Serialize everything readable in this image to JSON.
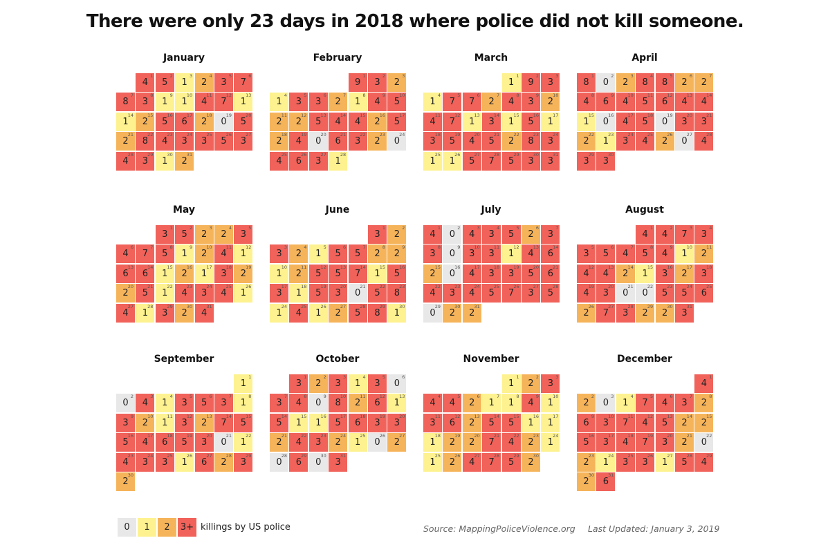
{
  "title": "There were only 23 days in 2018 where police did not kill someone.",
  "colors": {
    "0": "#e8e8e8",
    "1": "#fdf28f",
    "2": "#f6b45a",
    "3+": "#f0625a"
  },
  "legend": {
    "items": [
      {
        "label": "0",
        "key": "0"
      },
      {
        "label": "1",
        "key": "1"
      },
      {
        "label": "2",
        "key": "2"
      },
      {
        "label": "3+",
        "key": "3+"
      }
    ],
    "text": "killings by US police"
  },
  "source": "Source: MappingPoliceViolence.org",
  "updated": "Last Updated: January 3, 2019",
  "chart_data": {
    "type": "heatmap",
    "year": 2018,
    "months": [
      {
        "name": "January",
        "start_weekday": 1,
        "values": [
          4,
          5,
          1,
          2,
          3,
          7,
          8,
          3,
          1,
          1,
          4,
          7,
          1,
          1,
          2,
          5,
          6,
          2,
          0,
          5,
          2,
          8,
          4,
          3,
          3,
          5,
          3,
          4,
          3,
          1,
          2
        ]
      },
      {
        "name": "February",
        "start_weekday": 4,
        "values": [
          9,
          3,
          2,
          1,
          3,
          3,
          2,
          1,
          4,
          5,
          2,
          2,
          5,
          4,
          4,
          2,
          5,
          2,
          4,
          0,
          6,
          3,
          2,
          0,
          4,
          6,
          3,
          1
        ]
      },
      {
        "name": "March",
        "start_weekday": 4,
        "values": [
          1,
          9,
          3,
          1,
          7,
          7,
          2,
          4,
          3,
          2,
          4,
          7,
          1,
          3,
          1,
          5,
          1,
          3,
          5,
          4,
          5,
          2,
          8,
          3,
          1,
          1,
          5,
          7,
          5,
          3,
          3
        ]
      },
      {
        "name": "April",
        "start_weekday": 0,
        "values": [
          8,
          0,
          2,
          8,
          8,
          2,
          2,
          4,
          6,
          4,
          5,
          6,
          4,
          4,
          1,
          0,
          4,
          5,
          0,
          3,
          3,
          2,
          1,
          3,
          4,
          2,
          0,
          4,
          3,
          3
        ]
      },
      {
        "name": "May",
        "start_weekday": 2,
        "values": [
          3,
          5,
          2,
          2,
          3,
          4,
          7,
          5,
          1,
          2,
          4,
          1,
          6,
          6,
          1,
          2,
          1,
          3,
          2,
          2,
          5,
          1,
          4,
          3,
          4,
          1,
          4,
          1,
          3,
          2,
          4
        ]
      },
      {
        "name": "June",
        "start_weekday": 5,
        "values": [
          3,
          2,
          3,
          2,
          1,
          5,
          5,
          2,
          2,
          1,
          2,
          5,
          5,
          7,
          1,
          5,
          3,
          1,
          5,
          3,
          0,
          5,
          8,
          1,
          4,
          1,
          2,
          5,
          8,
          1
        ]
      },
      {
        "name": "July",
        "start_weekday": 0,
        "values": [
          4,
          0,
          4,
          3,
          5,
          2,
          3,
          3,
          0,
          3,
          3,
          1,
          4,
          6,
          2,
          0,
          4,
          3,
          3,
          5,
          6,
          4,
          3,
          4,
          5,
          7,
          3,
          5,
          0,
          2,
          2
        ]
      },
      {
        "name": "August",
        "start_weekday": 3,
        "values": [
          4,
          4,
          7,
          3,
          3,
          5,
          4,
          5,
          4,
          1,
          2,
          4,
          4,
          2,
          1,
          3,
          2,
          3,
          4,
          3,
          0,
          0,
          5,
          5,
          6,
          2,
          7,
          3,
          2,
          2,
          3
        ]
      },
      {
        "name": "September",
        "start_weekday": 6,
        "values": [
          1,
          0,
          4,
          1,
          3,
          5,
          3,
          1,
          3,
          2,
          1,
          3,
          2,
          7,
          5,
          5,
          4,
          6,
          5,
          3,
          0,
          1,
          4,
          3,
          3,
          1,
          6,
          2,
          3,
          2
        ]
      },
      {
        "name": "October",
        "start_weekday": 1,
        "values": [
          3,
          2,
          3,
          1,
          3,
          0,
          3,
          4,
          0,
          8,
          2,
          6,
          1,
          5,
          1,
          1,
          5,
          6,
          3,
          3,
          2,
          4,
          3,
          2,
          1,
          0,
          2,
          0,
          6,
          0,
          3
        ]
      },
      {
        "name": "November",
        "start_weekday": 4,
        "values": [
          1,
          2,
          3,
          4,
          4,
          2,
          1,
          1,
          4,
          1,
          3,
          6,
          2,
          5,
          5,
          1,
          1,
          1,
          2,
          2,
          7,
          4,
          2,
          1,
          1,
          2,
          4,
          7,
          5,
          2
        ]
      },
      {
        "name": "December",
        "start_weekday": 6,
        "values": [
          4,
          2,
          0,
          1,
          7,
          4,
          3,
          2,
          6,
          3,
          7,
          4,
          5,
          2,
          2,
          5,
          3,
          4,
          7,
          3,
          2,
          0,
          2,
          1,
          3,
          3,
          1,
          5,
          4,
          2,
          6
        ]
      }
    ]
  }
}
